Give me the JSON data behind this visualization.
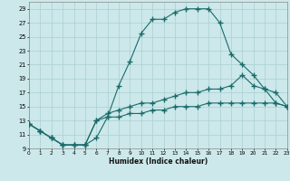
{
  "xlabel": "Humidex (Indice chaleur)",
  "bg_color": "#cce8ea",
  "grid_color": "#aacfd2",
  "line_color": "#1a6b6b",
  "xlim": [
    0,
    23
  ],
  "ylim": [
    9,
    30
  ],
  "xticks": [
    0,
    1,
    2,
    3,
    4,
    5,
    6,
    7,
    8,
    9,
    10,
    11,
    12,
    13,
    14,
    15,
    16,
    17,
    18,
    19,
    20,
    21,
    22,
    23
  ],
  "yticks": [
    9,
    11,
    13,
    15,
    17,
    19,
    21,
    23,
    25,
    27,
    29
  ],
  "curve1_x": [
    0,
    1,
    2,
    3,
    4,
    5,
    6,
    7,
    8,
    9,
    10,
    11,
    12,
    13,
    14,
    15,
    16,
    17,
    18,
    19,
    20,
    21,
    22,
    23
  ],
  "curve1_y": [
    12.5,
    11.5,
    10.5,
    9.5,
    9.5,
    9.5,
    10.5,
    13.5,
    18.0,
    21.5,
    25.5,
    27.5,
    27.5,
    28.5,
    29.0,
    29.0,
    29.0,
    27.0,
    22.5,
    21.0,
    19.5,
    17.5,
    15.5,
    15.0
  ],
  "curve2_x": [
    0,
    1,
    2,
    3,
    4,
    5,
    6,
    7,
    8,
    9,
    10,
    11,
    12,
    13,
    14,
    15,
    16,
    17,
    18,
    19,
    20,
    21,
    22,
    23
  ],
  "curve2_y": [
    12.5,
    11.5,
    10.5,
    9.5,
    9.5,
    9.5,
    13.0,
    14.0,
    14.5,
    15.0,
    15.5,
    15.5,
    16.0,
    16.5,
    17.0,
    17.0,
    17.5,
    17.5,
    18.0,
    19.5,
    18.0,
    17.5,
    17.0,
    15.0
  ],
  "curve3_x": [
    0,
    1,
    2,
    3,
    4,
    5,
    6,
    7,
    8,
    9,
    10,
    11,
    12,
    13,
    14,
    15,
    16,
    17,
    18,
    19,
    20,
    21,
    22,
    23
  ],
  "curve3_y": [
    12.5,
    11.5,
    10.5,
    9.5,
    9.5,
    9.5,
    13.0,
    13.5,
    13.5,
    14.0,
    14.0,
    14.5,
    14.5,
    15.0,
    15.0,
    15.0,
    15.5,
    15.5,
    15.5,
    15.5,
    15.5,
    15.5,
    15.5,
    15.0
  ]
}
